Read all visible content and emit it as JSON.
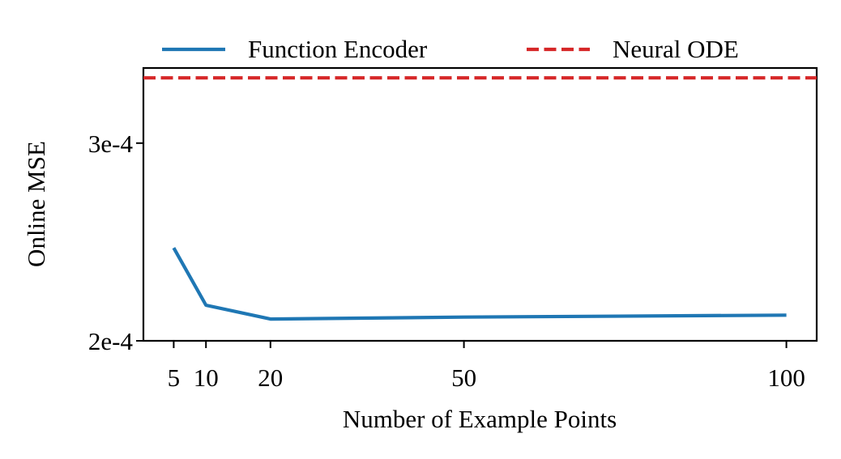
{
  "chart_data": {
    "type": "line",
    "xlabel": "Number of Example Points",
    "ylabel": "Online MSE",
    "x_ticks": [
      5,
      10,
      20,
      50,
      100
    ],
    "x_tick_labels": [
      "5",
      "10",
      "20",
      "50",
      "100"
    ],
    "y_ticks": [
      0.0002,
      0.0003
    ],
    "y_tick_labels": [
      "2e-4",
      "3e-4"
    ],
    "xlim": [
      0.3,
      104.7
    ],
    "ylim": [
      0.0002,
      0.000338
    ],
    "grid": false,
    "legend_placement": "top, above plot",
    "series": [
      {
        "name": "Function Encoder",
        "style": "solid",
        "color": "#1f77b4",
        "x": [
          5,
          10,
          20,
          50,
          100
        ],
        "y": [
          0.000247,
          0.000218,
          0.000211,
          0.000212,
          0.000213
        ]
      },
      {
        "name": "Neural ODE",
        "style": "dashed",
        "color": "#d62728",
        "y_constant": 0.000333
      }
    ]
  }
}
